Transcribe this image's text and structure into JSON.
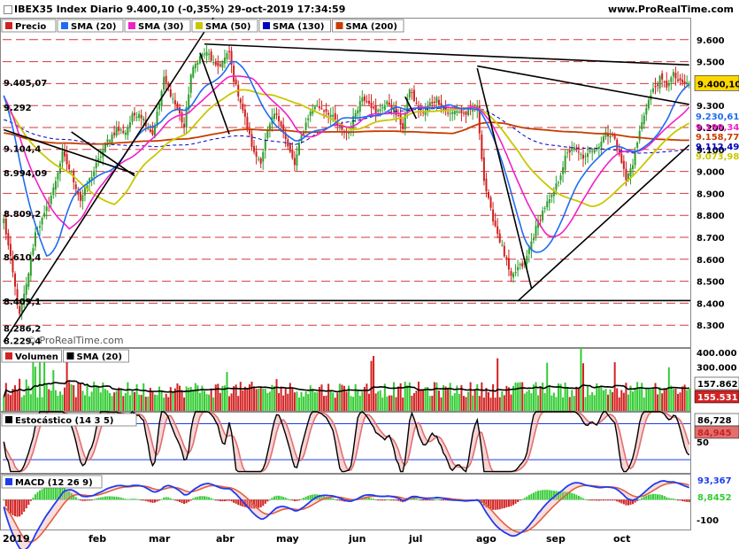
{
  "header": {
    "title": "IBEX35 Index Diario 9.400,10 (-0,35%) 29-oct-2019 17:34:59",
    "site": "www.ProRealTime.com",
    "watermark": "© ProRealTime.com"
  },
  "colors": {
    "price_up": "#2e9e2e",
    "price_down": "#d02020",
    "sma20": "#1e6cf0",
    "sma30": "#f020c8",
    "sma50": "#c8c800",
    "sma130": "#0000c0",
    "sma200": "#c83c00",
    "volume_up": "#33cc33",
    "volume_down": "#d22222",
    "stoch_main": "#000000",
    "stoch_signal": "#e07070",
    "macd": "#1e3cf0",
    "macd_signal": "#e06040"
  },
  "legends": {
    "price": [
      {
        "label": "Precio",
        "color": "#d02020"
      },
      {
        "label": "SMA (20)",
        "color": "#1e6cf0"
      },
      {
        "label": "SMA (30)",
        "color": "#f020c8"
      },
      {
        "label": "SMA (50)",
        "color": "#c8c800"
      },
      {
        "label": "SMA (130)",
        "color": "#0000c0"
      },
      {
        "label": "SMA (200)",
        "color": "#c83c00"
      }
    ],
    "volume": [
      {
        "label": "Volumen",
        "color": "#d22222"
      },
      {
        "label": "SMA (20)",
        "color": "#000000"
      }
    ],
    "stochastic": [
      {
        "label": "Estocástico (14 3 5)",
        "color": "#000000"
      }
    ],
    "macd": [
      {
        "label": "MACD (12 26 9)",
        "color": "#1e3cf0"
      }
    ]
  },
  "chart_data": [
    {
      "type": "line",
      "panel": "price",
      "x_labels": [
        "2019",
        "feb",
        "mar",
        "abr",
        "may",
        "jun",
        "jul",
        "ago",
        "sep",
        "oct"
      ],
      "ylim": [
        8200,
        9700
      ],
      "y_ticks": [
        8300,
        8400,
        8500,
        8600,
        8700,
        8800,
        8900,
        9000,
        9100,
        9200,
        9300,
        9400,
        9500,
        9600
      ],
      "y_tick_labels": [
        "8.300",
        "8.400",
        "8.500",
        "8.600",
        "8.700",
        "8.800",
        "8.900",
        "9.000",
        "9.100",
        "9.200",
        "9.300",
        "9.400",
        "9.500",
        "9.600"
      ],
      "left_levels": [
        {
          "value": 8229.4,
          "label": "8.229,4"
        },
        {
          "value": 8286.2,
          "label": "8.286,2"
        },
        {
          "value": 8409.1,
          "label": "8.409,1"
        },
        {
          "value": 8610.4,
          "label": "8.610,4"
        },
        {
          "value": 8809.2,
          "label": "8.809,2"
        },
        {
          "value": 8994.09,
          "label": "8.994,09"
        },
        {
          "value": 9104.4,
          "label": "9.104,4"
        },
        {
          "value": 9292,
          "label": "9.292"
        },
        {
          "value": 9405.07,
          "label": "9.405,07"
        }
      ],
      "right_values": [
        {
          "value": 9400.1,
          "label": "9.400,10",
          "color": "#ffd700"
        },
        {
          "value": 9230.61,
          "label": "9.230,61",
          "color": "#1e6cf0"
        },
        {
          "value": 9199.34,
          "label": "9.199,34",
          "color": "#f020c8"
        },
        {
          "value": 9158.77,
          "label": "9.158,77",
          "color": "#c83c00"
        },
        {
          "value": 9112.49,
          "label": "9.112,49",
          "color": "#0000c0"
        },
        {
          "value": 9073.98,
          "label": "9.073,98",
          "color": "#c8c800"
        }
      ],
      "support_line": 8412,
      "close_anchors": [
        [
          0,
          8780
        ],
        [
          3,
          8600
        ],
        [
          7,
          8340
        ],
        [
          10,
          8480
        ],
        [
          14,
          8720
        ],
        [
          18,
          8800
        ],
        [
          22,
          8920
        ],
        [
          26,
          9080
        ],
        [
          30,
          8990
        ],
        [
          34,
          8870
        ],
        [
          38,
          8960
        ],
        [
          42,
          9050
        ],
        [
          46,
          9140
        ],
        [
          50,
          9190
        ],
        [
          54,
          9180
        ],
        [
          57,
          9250
        ],
        [
          60,
          9270
        ],
        [
          63,
          9220
        ],
        [
          66,
          9170
        ],
        [
          69,
          9310
        ],
        [
          71,
          9420
        ],
        [
          73,
          9380
        ],
        [
          75,
          9330
        ],
        [
          78,
          9260
        ],
        [
          80,
          9200
        ],
        [
          83,
          9440
        ],
        [
          86,
          9510
        ],
        [
          89,
          9540
        ],
        [
          91,
          9530
        ],
        [
          94,
          9470
        ],
        [
          97,
          9500
        ],
        [
          100,
          9540
        ],
        [
          102,
          9420
        ],
        [
          105,
          9320
        ],
        [
          108,
          9200
        ],
        [
          111,
          9080
        ],
        [
          114,
          9050
        ],
        [
          117,
          9180
        ],
        [
          120,
          9260
        ],
        [
          123,
          9220
        ],
        [
          126,
          9110
        ],
        [
          129,
          9030
        ],
        [
          132,
          9160
        ],
        [
          135,
          9250
        ],
        [
          138,
          9300
        ],
        [
          141,
          9290
        ],
        [
          144,
          9270
        ],
        [
          147,
          9230
        ],
        [
          150,
          9180
        ],
        [
          153,
          9180
        ],
        [
          156,
          9270
        ],
        [
          159,
          9340
        ],
        [
          162,
          9320
        ],
        [
          165,
          9260
        ],
        [
          168,
          9300
        ],
        [
          171,
          9310
        ],
        [
          174,
          9260
        ],
        [
          177,
          9200
        ],
        [
          180,
          9380
        ],
        [
          183,
          9300
        ],
        [
          186,
          9260
        ],
        [
          189,
          9310
        ],
        [
          192,
          9330
        ],
        [
          195,
          9290
        ],
        [
          198,
          9260
        ],
        [
          201,
          9280
        ],
        [
          204,
          9260
        ],
        [
          207,
          9270
        ],
        [
          210,
          9290
        ],
        [
          213,
          8960
        ],
        [
          216,
          8820
        ],
        [
          219,
          8720
        ],
        [
          222,
          8620
        ],
        [
          225,
          8510
        ],
        [
          228,
          8560
        ],
        [
          231,
          8580
        ],
        [
          234,
          8680
        ],
        [
          237,
          8770
        ],
        [
          240,
          8840
        ],
        [
          243,
          8880
        ],
        [
          246,
          8960
        ],
        [
          249,
          9060
        ],
        [
          252,
          9110
        ],
        [
          255,
          9080
        ],
        [
          258,
          9060
        ],
        [
          261,
          9100
        ],
        [
          264,
          9120
        ],
        [
          267,
          9180
        ],
        [
          270,
          9160
        ],
        [
          273,
          9090
        ],
        [
          276,
          8960
        ],
        [
          279,
          9040
        ],
        [
          282,
          9180
        ],
        [
          285,
          9300
        ],
        [
          288,
          9370
        ],
        [
          291,
          9420
        ],
        [
          294,
          9390
        ],
        [
          297,
          9440
        ],
        [
          300,
          9400
        ]
      ],
      "trendlines": [
        {
          "from": [
            0,
            8225
          ],
          "to": [
            93,
            9700
          ]
        },
        {
          "from": [
            89,
            9580
          ],
          "to": [
            304,
            9485
          ]
        },
        {
          "from": [
            210,
            9480
          ],
          "to": [
            304,
            9305
          ]
        },
        {
          "from": [
            228,
            8410
          ],
          "to": [
            304,
            9120
          ]
        },
        {
          "from": [
            0,
            9190
          ],
          "to": [
            58,
            8990
          ]
        },
        {
          "from": [
            87,
            9540
          ],
          "to": [
            100,
            9170
          ]
        },
        {
          "from": [
            210,
            9470
          ],
          "to": [
            234,
            8470
          ]
        },
        {
          "from": [
            30,
            9180
          ],
          "to": [
            58,
            8980
          ]
        },
        {
          "from": [
            178,
            9340
          ],
          "to": [
            183,
            9240
          ]
        }
      ]
    },
    {
      "type": "bar",
      "panel": "volume",
      "y_ticks": [
        300000,
        400000
      ],
      "y_tick_labels": [
        "300.000",
        "400.000"
      ],
      "ylim": [
        0,
        430000
      ],
      "right_values": [
        {
          "value": 157862,
          "label": "157.862",
          "color": "#ffffff"
        },
        {
          "value": 155531,
          "label": "155.531",
          "color": "#d22222"
        }
      ]
    },
    {
      "type": "line",
      "panel": "stochastic",
      "ylim": [
        -2,
        100
      ],
      "y_ticks": [
        50
      ],
      "y_tick_labels": [
        "50"
      ],
      "levels": [
        20,
        80
      ],
      "right_values": [
        {
          "value": 86.728,
          "label": "86,728",
          "color": "#ffffff"
        },
        {
          "value": 84.945,
          "label": "84,945",
          "color": "#e07070"
        }
      ]
    },
    {
      "type": "line",
      "panel": "macd",
      "ylim": [
        -150,
        130
      ],
      "y_ticks": [
        -100
      ],
      "y_tick_labels": [
        "-100"
      ],
      "right_values": [
        {
          "value": 93.367,
          "label": "93,367",
          "color": "#1e3cf0"
        },
        {
          "value": 8.8452,
          "label": "8,8452",
          "color": "#33cc33"
        }
      ]
    }
  ]
}
